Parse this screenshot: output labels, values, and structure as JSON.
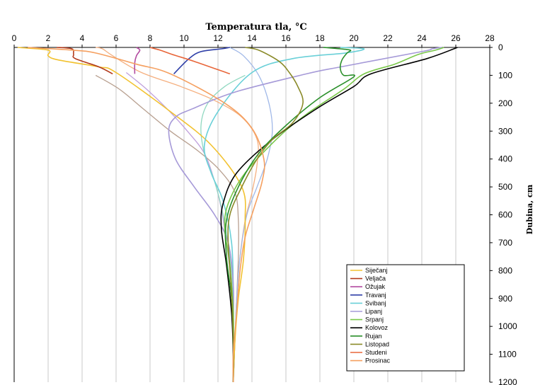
{
  "chart_data": {
    "type": "line",
    "title": "Temperatura tla, °C",
    "xlabel": "Temperatura tla, °C",
    "ylabel": "Dubina, cm",
    "xlim": [
      0,
      28
    ],
    "ylim": [
      0,
      1200
    ],
    "x_ticks": [
      0,
      2,
      4,
      6,
      8,
      10,
      12,
      14,
      16,
      18,
      20,
      22,
      24,
      26,
      28
    ],
    "y_ticks": [
      0,
      100,
      200,
      300,
      400,
      500,
      600,
      700,
      800,
      900,
      1000,
      1100,
      1200
    ],
    "x_axis_position": "top",
    "y_axis_position": "right",
    "y_inverted": true,
    "grid": "vertical",
    "legend_position": "bottom-right",
    "series": [
      {
        "name": "Siječanj",
        "color": "#f2c230",
        "points": [
          [
            0.2,
            0
          ],
          [
            2,
            10
          ],
          [
            2,
            30
          ],
          [
            2.6,
            45
          ],
          [
            5,
            70
          ],
          [
            6,
            90
          ],
          [
            9.2,
            230
          ],
          [
            11.6,
            350
          ],
          [
            13.4,
            500
          ],
          [
            13.6,
            620
          ],
          [
            13.5,
            760
          ],
          [
            13.2,
            900
          ],
          [
            13.0,
            1050
          ],
          [
            12.9,
            1200
          ]
        ]
      },
      {
        "name": "Veljača",
        "color": "#b23a1c",
        "points": [
          [
            2.5,
            0
          ],
          [
            3.4,
            5
          ],
          [
            3.5,
            25
          ],
          [
            3.6,
            40
          ],
          [
            5,
            70
          ],
          [
            5.8,
            95
          ]
        ]
      },
      {
        "name": "Ožujak",
        "color": "#b24aa0",
        "points": [
          [
            7.2,
            0
          ],
          [
            7.4,
            10
          ],
          [
            7.2,
            30
          ],
          [
            7.1,
            55
          ],
          [
            7.1,
            95
          ]
        ]
      },
      {
        "name": "Travanj",
        "color": "#3040a8",
        "points": [
          [
            12.7,
            0
          ],
          [
            12.2,
            5
          ],
          [
            11.0,
            15
          ],
          [
            10.3,
            40
          ],
          [
            9.4,
            95
          ]
        ]
      },
      {
        "name": "Svibanj",
        "color": "#6ad0d8",
        "points": [
          [
            19.2,
            0
          ],
          [
            20.6,
            5
          ],
          [
            19.5,
            20
          ],
          [
            16.4,
            40
          ],
          [
            14.0,
            90
          ],
          [
            12.0,
            230
          ],
          [
            11.2,
            350
          ],
          [
            11.6,
            450
          ],
          [
            12.3,
            550
          ],
          [
            12.8,
            700
          ],
          [
            12.9,
            880
          ],
          [
            12.9,
            1050
          ],
          [
            12.9,
            1200
          ]
        ]
      },
      {
        "name": "Lipanj",
        "color": "#a69ad8",
        "points": [
          [
            25.2,
            0
          ],
          [
            24.6,
            5
          ],
          [
            24.0,
            15
          ],
          [
            19.2,
            70
          ],
          [
            17.2,
            95
          ],
          [
            13.0,
            160
          ],
          [
            10.5,
            220
          ],
          [
            9.5,
            250
          ],
          [
            9.1,
            300
          ],
          [
            9.5,
            400
          ],
          [
            10.6,
            500
          ],
          [
            11.8,
            600
          ],
          [
            12.6,
            700
          ],
          [
            12.9,
            850
          ],
          [
            12.9,
            1000
          ],
          [
            12.9,
            1200
          ]
        ]
      },
      {
        "name": "Srpanj",
        "color": "#7ac84a",
        "points": [
          [
            25.3,
            0
          ],
          [
            24.8,
            10
          ],
          [
            23.8,
            25
          ],
          [
            22.4,
            60
          ],
          [
            20.6,
            95
          ],
          [
            19.4,
            150
          ],
          [
            17.2,
            240
          ],
          [
            15.6,
            320
          ],
          [
            13.6,
            450
          ],
          [
            12.6,
            560
          ],
          [
            12.4,
            650
          ],
          [
            12.7,
            780
          ],
          [
            12.9,
            950
          ],
          [
            12.9,
            1100
          ],
          [
            12.9,
            1200
          ]
        ]
      },
      {
        "name": "Kolovoz",
        "color": "#000000",
        "points": [
          [
            26.1,
            0
          ],
          [
            24.3,
            40
          ],
          [
            21.0,
            95
          ],
          [
            20.0,
            140
          ],
          [
            17.8,
            220
          ],
          [
            15.2,
            330
          ],
          [
            13.1,
            450
          ],
          [
            12.3,
            560
          ],
          [
            12.2,
            650
          ],
          [
            12.5,
            780
          ],
          [
            12.8,
            950
          ],
          [
            12.9,
            1100
          ],
          [
            12.9,
            1200
          ]
        ]
      },
      {
        "name": "Rujan",
        "color": "#2a8f2a",
        "points": [
          [
            18.2,
            0
          ],
          [
            19.2,
            5
          ],
          [
            19.8,
            10
          ],
          [
            19.6,
            20
          ],
          [
            19.3,
            45
          ],
          [
            19.2,
            75
          ],
          [
            19.4,
            100
          ],
          [
            20.0,
            105
          ],
          [
            18.0,
            180
          ],
          [
            16.0,
            280
          ],
          [
            14.4,
            380
          ],
          [
            13.2,
            500
          ],
          [
            12.5,
            620
          ],
          [
            12.5,
            750
          ],
          [
            12.8,
            900
          ],
          [
            12.9,
            1050
          ],
          [
            12.9,
            1200
          ]
        ]
      },
      {
        "name": "Listopad",
        "color": "#8a8a28",
        "points": [
          [
            13.6,
            0
          ],
          [
            14.4,
            10
          ],
          [
            15.6,
            50
          ],
          [
            16.2,
            90
          ],
          [
            16.7,
            140
          ],
          [
            17.0,
            200
          ],
          [
            16.4,
            270
          ],
          [
            15.2,
            330
          ],
          [
            14.3,
            400
          ],
          [
            13.4,
            500
          ],
          [
            12.7,
            600
          ],
          [
            12.6,
            700
          ],
          [
            12.8,
            880
          ],
          [
            12.9,
            1050
          ],
          [
            12.9,
            1200
          ]
        ]
      },
      {
        "name": "Studeni",
        "color": "#e8663a",
        "points": [
          [
            8.0,
            0
          ],
          [
            8.6,
            10
          ],
          [
            9.3,
            25
          ],
          [
            10.6,
            50
          ],
          [
            12.7,
            95
          ]
        ]
      },
      {
        "name": "Prosinac",
        "color": "#f5a060",
        "points": [
          [
            0.8,
            0
          ],
          [
            3.5,
            10
          ],
          [
            4.8,
            20
          ],
          [
            7.2,
            60
          ],
          [
            9.2,
            95
          ],
          [
            12.4,
            200
          ],
          [
            14.0,
            290
          ],
          [
            14.7,
            400
          ],
          [
            14.6,
            480
          ],
          [
            14.1,
            580
          ],
          [
            13.6,
            680
          ],
          [
            13.3,
            800
          ],
          [
            13.1,
            950
          ],
          [
            12.9,
            1100
          ],
          [
            12.9,
            1200
          ]
        ]
      }
    ],
    "extra_curves": [
      {
        "color": "#f5b080",
        "points": [
          [
            4.8,
            0
          ],
          [
            5.2,
            5
          ],
          [
            5.8,
            30
          ],
          [
            7.5,
            90
          ],
          [
            9.8,
            140
          ],
          [
            11.8,
            190
          ],
          [
            13.4,
            250
          ],
          [
            14.3,
            330
          ],
          [
            14.3,
            420
          ],
          [
            14.0,
            520
          ],
          [
            13.6,
            620
          ],
          [
            13.3,
            750
          ],
          [
            13.1,
            900
          ],
          [
            13.0,
            1050
          ],
          [
            12.9,
            1200
          ]
        ]
      },
      {
        "color": "#c0a0dc",
        "points": [
          [
            6.6,
            90
          ],
          [
            7.8,
            150
          ],
          [
            9.0,
            220
          ],
          [
            10.2,
            300
          ],
          [
            11.2,
            380
          ],
          [
            11.8,
            480
          ],
          [
            12.2,
            580
          ],
          [
            12.5,
            700
          ],
          [
            12.8,
            850
          ],
          [
            12.9,
            1000
          ],
          [
            12.9,
            1200
          ]
        ]
      },
      {
        "color": "#90d8c0",
        "points": [
          [
            13.6,
            100
          ],
          [
            12.4,
            140
          ],
          [
            11.4,
            200
          ],
          [
            11.0,
            280
          ],
          [
            11.2,
            380
          ],
          [
            11.8,
            480
          ],
          [
            12.3,
            600
          ],
          [
            12.7,
            750
          ],
          [
            12.9,
            900
          ],
          [
            12.9,
            1200
          ]
        ]
      },
      {
        "color": "#b8a090",
        "points": [
          [
            4.8,
            100
          ],
          [
            6.2,
            150
          ],
          [
            7.6,
            220
          ],
          [
            9.2,
            300
          ],
          [
            10.8,
            370
          ],
          [
            12.1,
            440
          ],
          [
            13.0,
            520
          ],
          [
            13.2,
            620
          ],
          [
            13.2,
            750
          ],
          [
            13.1,
            900
          ],
          [
            13.0,
            1050
          ],
          [
            12.9,
            1200
          ]
        ]
      },
      {
        "color": "#a0b8e8",
        "points": [
          [
            12.7,
            0
          ],
          [
            13.5,
            30
          ],
          [
            14.4,
            100
          ],
          [
            15.0,
            200
          ],
          [
            15.2,
            300
          ],
          [
            14.9,
            400
          ],
          [
            14.3,
            500
          ],
          [
            13.7,
            600
          ],
          [
            13.3,
            750
          ],
          [
            13.1,
            900
          ],
          [
            13.0,
            1050
          ],
          [
            12.9,
            1200
          ]
        ]
      }
    ]
  }
}
